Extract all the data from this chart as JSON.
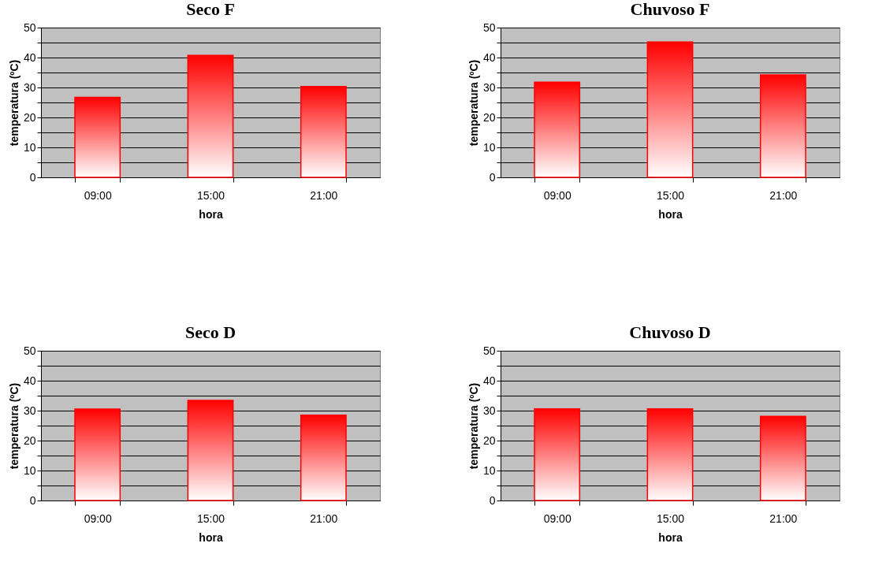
{
  "chart_data": [
    {
      "type": "bar",
      "title": "Seco F",
      "xlabel": "hora",
      "ylabel": "temperatura (ºC)",
      "categories": [
        "09:00",
        "15:00",
        "21:00"
      ],
      "values": [
        26.7,
        40.7,
        30.3
      ],
      "color": "#ff0000",
      "ylim": [
        0,
        50
      ],
      "yticks": [
        0,
        {
          "value": 5,
          "label": null
        },
        10,
        {
          "value": 15,
          "label": null
        },
        20,
        {
          "value": 25,
          "label": null
        },
        30,
        {
          "value": 35,
          "label": null
        },
        40,
        {
          "value": 45,
          "label": null
        },
        50
      ],
      "grid": "y"
    },
    {
      "type": "bar",
      "title": "Chuvoso F",
      "xlabel": "hora",
      "ylabel": "temperatura (ºC)",
      "categories": [
        "09:00",
        "15:00",
        "21:00"
      ],
      "values": [
        31.8,
        45.2,
        34.2
      ],
      "color": "#ff0000",
      "ylim": [
        0,
        50
      ],
      "yticks": [
        0,
        {
          "value": 5,
          "label": null
        },
        10,
        {
          "value": 15,
          "label": null
        },
        20,
        {
          "value": 25,
          "label": null
        },
        30,
        {
          "value": 35,
          "label": null
        },
        40,
        {
          "value": 45,
          "label": null
        },
        50
      ],
      "grid": "y"
    },
    {
      "type": "bar",
      "title": "Seco D",
      "xlabel": "hora",
      "ylabel": "temperatura (ºC)",
      "categories": [
        "09:00",
        "15:00",
        "21:00"
      ],
      "values": [
        30.5,
        33.4,
        28.5
      ],
      "color": "#ff0000",
      "ylim": [
        0,
        50
      ],
      "yticks": [
        0,
        {
          "value": 5,
          "label": null
        },
        10,
        {
          "value": 15,
          "label": null
        },
        20,
        {
          "value": 25,
          "label": null
        },
        30,
        {
          "value": 35,
          "label": null
        },
        40,
        {
          "value": 45,
          "label": null
        },
        50
      ],
      "grid": "y"
    },
    {
      "type": "bar",
      "title": "Chuvoso D",
      "xlabel": "hora",
      "ylabel": "temperatura (ºC)",
      "categories": [
        "09:00",
        "15:00",
        "21:00"
      ],
      "values": [
        30.6,
        30.6,
        28.1
      ],
      "color": "#ff0000",
      "ylim": [
        0,
        50
      ],
      "yticks": [
        0,
        {
          "value": 5,
          "label": null
        },
        10,
        {
          "value": 15,
          "label": null
        },
        20,
        {
          "value": 25,
          "label": null
        },
        30,
        {
          "value": 35,
          "label": null
        },
        40,
        {
          "value": 45,
          "label": null
        },
        50
      ],
      "grid": "y"
    }
  ]
}
